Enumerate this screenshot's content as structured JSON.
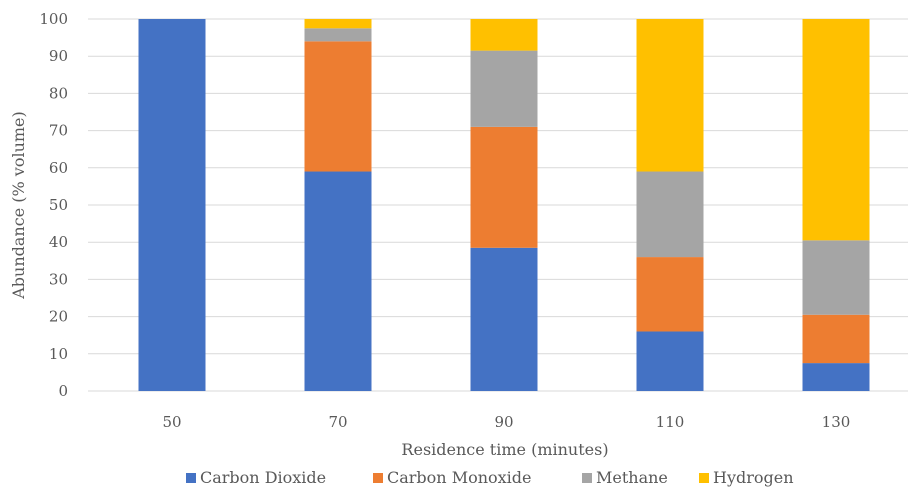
{
  "chart_data": {
    "type": "bar",
    "stacked": true,
    "title": "",
    "xlabel": "Residence time (minutes)",
    "ylabel": "Abundance (% volume)",
    "ylim": [
      0,
      100
    ],
    "ytick_step": 10,
    "grid": true,
    "legend_position": "bottom",
    "categories": [
      "50",
      "70",
      "90",
      "110",
      "130"
    ],
    "series": [
      {
        "name": "Carbon Dioxide",
        "color": "#4472C4",
        "values": [
          100,
          59,
          38.5,
          16,
          7.5
        ]
      },
      {
        "name": "Carbon Monoxide",
        "color": "#ED7D31",
        "values": [
          0,
          35,
          32.5,
          20,
          13
        ]
      },
      {
        "name": "Methane",
        "color": "#A5A5A5",
        "values": [
          0,
          3.5,
          20.5,
          23,
          20
        ]
      },
      {
        "name": "Hydrogen",
        "color": "#FFC000",
        "values": [
          0,
          2.5,
          8.5,
          41,
          59.5
        ]
      }
    ]
  }
}
